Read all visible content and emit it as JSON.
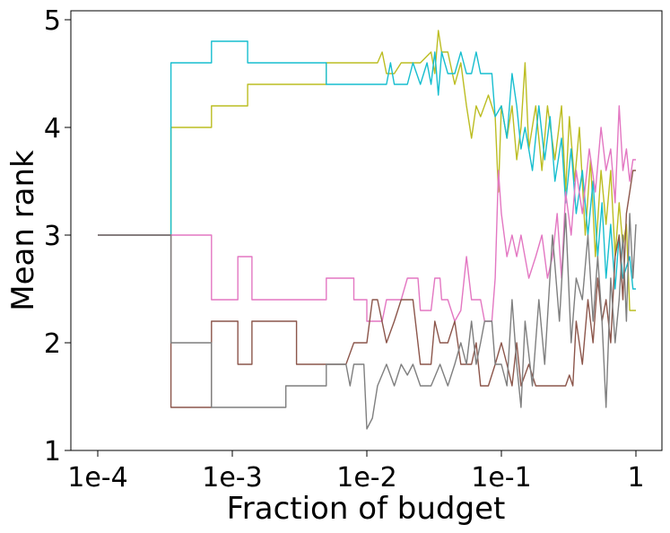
{
  "chart_data": {
    "type": "line",
    "title": "",
    "xlabel": "Fraction of budget",
    "ylabel": "Mean rank",
    "xscale": "log",
    "xlim": [
      0.0001,
      1
    ],
    "ylim": [
      1,
      5
    ],
    "xticks": [
      {
        "value": 0.0001,
        "label": "1e-4"
      },
      {
        "value": 0.001,
        "label": "1e-3"
      },
      {
        "value": 0.01,
        "label": "1e-2"
      },
      {
        "value": 0.1,
        "label": "1e-1"
      },
      {
        "value": 1,
        "label": "1"
      }
    ],
    "yticks": [
      {
        "value": 1,
        "label": "1"
      },
      {
        "value": 2,
        "label": "2"
      },
      {
        "value": 3,
        "label": "3"
      },
      {
        "value": 4,
        "label": "4"
      },
      {
        "value": 5,
        "label": "5"
      }
    ],
    "grid": false,
    "legend": "none",
    "series": [
      {
        "name": "olive",
        "color": "#bcbd22",
        "points": [
          [
            0.0001,
            3
          ],
          [
            0.00035,
            3
          ],
          [
            0.00035,
            4
          ],
          [
            0.0007,
            4
          ],
          [
            0.0007,
            4.2
          ],
          [
            0.0013,
            4.2
          ],
          [
            0.0013,
            4.4
          ],
          [
            0.005,
            4.4
          ],
          [
            0.005,
            4.6
          ],
          [
            0.012,
            4.6
          ],
          [
            0.013,
            4.7
          ],
          [
            0.014,
            4.5
          ],
          [
            0.016,
            4.5
          ],
          [
            0.018,
            4.6
          ],
          [
            0.025,
            4.6
          ],
          [
            0.03,
            4.7
          ],
          [
            0.032,
            4.5
          ],
          [
            0.034,
            4.9
          ],
          [
            0.036,
            4.7
          ],
          [
            0.04,
            4.7
          ],
          [
            0.045,
            4.4
          ],
          [
            0.05,
            4.6
          ],
          [
            0.055,
            4.2
          ],
          [
            0.06,
            3.9
          ],
          [
            0.065,
            4.2
          ],
          [
            0.07,
            4.1
          ],
          [
            0.08,
            4.3
          ],
          [
            0.09,
            4.1
          ],
          [
            0.095,
            3.4
          ],
          [
            0.1,
            4.2
          ],
          [
            0.11,
            3.9
          ],
          [
            0.12,
            4.2
          ],
          [
            0.13,
            3.7
          ],
          [
            0.14,
            4.0
          ],
          [
            0.15,
            4.6
          ],
          [
            0.16,
            3.8
          ],
          [
            0.18,
            4.2
          ],
          [
            0.2,
            3.6
          ],
          [
            0.22,
            4.2
          ],
          [
            0.25,
            3.7
          ],
          [
            0.28,
            4.2
          ],
          [
            0.3,
            3.4
          ],
          [
            0.32,
            4.1
          ],
          [
            0.35,
            3.5
          ],
          [
            0.38,
            4.0
          ],
          [
            0.42,
            3.0
          ],
          [
            0.46,
            3.7
          ],
          [
            0.5,
            2.8
          ],
          [
            0.55,
            3.6
          ],
          [
            0.6,
            3.1
          ],
          [
            0.65,
            3.6
          ],
          [
            0.7,
            2.8
          ],
          [
            0.75,
            3.3
          ],
          [
            0.8,
            2.9
          ],
          [
            0.85,
            3.1
          ],
          [
            0.9,
            2.3
          ],
          [
            1.0,
            2.3
          ]
        ]
      },
      {
        "name": "cyan",
        "color": "#17becf",
        "points": [
          [
            0.0001,
            3
          ],
          [
            0.00035,
            3
          ],
          [
            0.00035,
            4.6
          ],
          [
            0.0007,
            4.6
          ],
          [
            0.0007,
            4.8
          ],
          [
            0.0013,
            4.8
          ],
          [
            0.0013,
            4.6
          ],
          [
            0.005,
            4.6
          ],
          [
            0.005,
            4.4
          ],
          [
            0.014,
            4.4
          ],
          [
            0.015,
            4.6
          ],
          [
            0.016,
            4.4
          ],
          [
            0.02,
            4.4
          ],
          [
            0.022,
            4.6
          ],
          [
            0.025,
            4.4
          ],
          [
            0.028,
            4.6
          ],
          [
            0.03,
            4.4
          ],
          [
            0.032,
            4.7
          ],
          [
            0.034,
            4.3
          ],
          [
            0.036,
            4.7
          ],
          [
            0.04,
            4.5
          ],
          [
            0.045,
            4.5
          ],
          [
            0.05,
            4.7
          ],
          [
            0.055,
            4.5
          ],
          [
            0.06,
            4.5
          ],
          [
            0.065,
            4.7
          ],
          [
            0.07,
            4.5
          ],
          [
            0.085,
            4.5
          ],
          [
            0.09,
            4.1
          ],
          [
            0.1,
            4.2
          ],
          [
            0.11,
            3.9
          ],
          [
            0.12,
            4.5
          ],
          [
            0.13,
            4.2
          ],
          [
            0.14,
            3.8
          ],
          [
            0.15,
            4.0
          ],
          [
            0.17,
            3.6
          ],
          [
            0.19,
            4.2
          ],
          [
            0.21,
            3.7
          ],
          [
            0.23,
            4.1
          ],
          [
            0.25,
            3.5
          ],
          [
            0.28,
            3.9
          ],
          [
            0.3,
            3.3
          ],
          [
            0.33,
            3.8
          ],
          [
            0.36,
            3.2
          ],
          [
            0.4,
            3.6
          ],
          [
            0.44,
            3.0
          ],
          [
            0.48,
            3.5
          ],
          [
            0.52,
            2.8
          ],
          [
            0.56,
            3.3
          ],
          [
            0.6,
            2.6
          ],
          [
            0.65,
            3.1
          ],
          [
            0.7,
            2.5
          ],
          [
            0.75,
            3.0
          ],
          [
            0.8,
            2.6
          ],
          [
            0.9,
            2.8
          ],
          [
            0.95,
            2.5
          ],
          [
            1.0,
            2.5
          ]
        ]
      },
      {
        "name": "pink",
        "color": "#e377c2",
        "points": [
          [
            0.0001,
            3
          ],
          [
            0.00035,
            3
          ],
          [
            0.00035,
            3.0
          ],
          [
            0.0007,
            3.0
          ],
          [
            0.0007,
            2.4
          ],
          [
            0.0011,
            2.4
          ],
          [
            0.0011,
            2.8
          ],
          [
            0.0014,
            2.8
          ],
          [
            0.0014,
            2.4
          ],
          [
            0.005,
            2.4
          ],
          [
            0.005,
            2.6
          ],
          [
            0.008,
            2.6
          ],
          [
            0.008,
            2.4
          ],
          [
            0.01,
            2.4
          ],
          [
            0.01,
            2.2
          ],
          [
            0.013,
            2.2
          ],
          [
            0.014,
            2.4
          ],
          [
            0.018,
            2.4
          ],
          [
            0.02,
            2.6
          ],
          [
            0.024,
            2.6
          ],
          [
            0.025,
            2.3
          ],
          [
            0.03,
            2.3
          ],
          [
            0.032,
            2.6
          ],
          [
            0.035,
            2.6
          ],
          [
            0.036,
            2.4
          ],
          [
            0.04,
            2.4
          ],
          [
            0.045,
            2.2
          ],
          [
            0.05,
            2.3
          ],
          [
            0.055,
            2.8
          ],
          [
            0.06,
            2.4
          ],
          [
            0.07,
            2.4
          ],
          [
            0.075,
            2.2
          ],
          [
            0.085,
            2.2
          ],
          [
            0.09,
            2.6
          ],
          [
            0.095,
            3.6
          ],
          [
            0.1,
            3.2
          ],
          [
            0.11,
            2.8
          ],
          [
            0.12,
            3.0
          ],
          [
            0.13,
            2.8
          ],
          [
            0.14,
            3.0
          ],
          [
            0.16,
            2.6
          ],
          [
            0.18,
            2.8
          ],
          [
            0.2,
            3.0
          ],
          [
            0.22,
            2.6
          ],
          [
            0.24,
            2.8
          ],
          [
            0.26,
            3.2
          ],
          [
            0.28,
            2.6
          ],
          [
            0.3,
            3.4
          ],
          [
            0.33,
            3.0
          ],
          [
            0.36,
            3.6
          ],
          [
            0.4,
            3.2
          ],
          [
            0.45,
            3.8
          ],
          [
            0.5,
            3.4
          ],
          [
            0.55,
            4.0
          ],
          [
            0.6,
            3.6
          ],
          [
            0.65,
            3.8
          ],
          [
            0.7,
            3.3
          ],
          [
            0.75,
            4.2
          ],
          [
            0.8,
            3.6
          ],
          [
            0.85,
            3.8
          ],
          [
            0.9,
            3.5
          ],
          [
            0.95,
            3.7
          ],
          [
            1.0,
            3.7
          ]
        ]
      },
      {
        "name": "brown",
        "color": "#8c564b",
        "points": [
          [
            0.0001,
            3
          ],
          [
            0.00035,
            3
          ],
          [
            0.00035,
            1.4
          ],
          [
            0.0007,
            1.4
          ],
          [
            0.0007,
            2.2
          ],
          [
            0.0011,
            2.2
          ],
          [
            0.0011,
            1.8
          ],
          [
            0.0014,
            1.8
          ],
          [
            0.0014,
            2.2
          ],
          [
            0.003,
            2.2
          ],
          [
            0.003,
            1.8
          ],
          [
            0.007,
            1.8
          ],
          [
            0.008,
            2.0
          ],
          [
            0.01,
            2.0
          ],
          [
            0.011,
            2.4
          ],
          [
            0.012,
            2.4
          ],
          [
            0.014,
            2.0
          ],
          [
            0.016,
            2.2
          ],
          [
            0.018,
            2.4
          ],
          [
            0.022,
            2.4
          ],
          [
            0.025,
            1.8
          ],
          [
            0.03,
            1.8
          ],
          [
            0.032,
            2.2
          ],
          [
            0.035,
            2.0
          ],
          [
            0.04,
            2.0
          ],
          [
            0.045,
            2.2
          ],
          [
            0.05,
            1.8
          ],
          [
            0.06,
            1.8
          ],
          [
            0.065,
            2.0
          ],
          [
            0.07,
            1.6
          ],
          [
            0.08,
            1.6
          ],
          [
            0.09,
            1.8
          ],
          [
            0.1,
            2.0
          ],
          [
            0.11,
            1.8
          ],
          [
            0.12,
            1.6
          ],
          [
            0.13,
            2.0
          ],
          [
            0.14,
            1.6
          ],
          [
            0.16,
            1.8
          ],
          [
            0.18,
            1.6
          ],
          [
            0.2,
            1.6
          ],
          [
            0.22,
            1.6
          ],
          [
            0.25,
            1.6
          ],
          [
            0.28,
            1.6
          ],
          [
            0.3,
            1.6
          ],
          [
            0.32,
            1.7
          ],
          [
            0.34,
            1.6
          ],
          [
            0.36,
            2.2
          ],
          [
            0.4,
            1.8
          ],
          [
            0.44,
            2.4
          ],
          [
            0.48,
            2.0
          ],
          [
            0.52,
            2.6
          ],
          [
            0.56,
            2.2
          ],
          [
            0.6,
            2.4
          ],
          [
            0.65,
            2.0
          ],
          [
            0.7,
            2.8
          ],
          [
            0.75,
            3.0
          ],
          [
            0.8,
            2.4
          ],
          [
            0.85,
            3.2
          ],
          [
            0.9,
            3.4
          ],
          [
            0.95,
            3.6
          ],
          [
            1.0,
            3.6
          ]
        ]
      },
      {
        "name": "gray",
        "color": "#7f7f7f",
        "points": [
          [
            0.0001,
            3
          ],
          [
            0.00035,
            3
          ],
          [
            0.00035,
            2.0
          ],
          [
            0.0007,
            2.0
          ],
          [
            0.0007,
            1.4
          ],
          [
            0.0025,
            1.4
          ],
          [
            0.0025,
            1.6
          ],
          [
            0.005,
            1.6
          ],
          [
            0.005,
            1.8
          ],
          [
            0.007,
            1.8
          ],
          [
            0.0075,
            1.6
          ],
          [
            0.008,
            1.8
          ],
          [
            0.0095,
            1.8
          ],
          [
            0.01,
            1.2
          ],
          [
            0.011,
            1.3
          ],
          [
            0.012,
            1.6
          ],
          [
            0.014,
            1.8
          ],
          [
            0.016,
            1.6
          ],
          [
            0.018,
            1.8
          ],
          [
            0.02,
            1.7
          ],
          [
            0.022,
            1.8
          ],
          [
            0.025,
            1.6
          ],
          [
            0.03,
            1.6
          ],
          [
            0.035,
            1.8
          ],
          [
            0.04,
            1.6
          ],
          [
            0.045,
            1.8
          ],
          [
            0.05,
            2.0
          ],
          [
            0.055,
            1.8
          ],
          [
            0.06,
            2.2
          ],
          [
            0.065,
            1.8
          ],
          [
            0.07,
            2.0
          ],
          [
            0.075,
            2.2
          ],
          [
            0.085,
            2.2
          ],
          [
            0.09,
            1.8
          ],
          [
            0.1,
            1.8
          ],
          [
            0.11,
            1.6
          ],
          [
            0.12,
            2.4
          ],
          [
            0.13,
            1.8
          ],
          [
            0.14,
            1.4
          ],
          [
            0.15,
            2.2
          ],
          [
            0.17,
            1.6
          ],
          [
            0.19,
            2.4
          ],
          [
            0.21,
            1.8
          ],
          [
            0.24,
            3.0
          ],
          [
            0.27,
            2.2
          ],
          [
            0.3,
            3.2
          ],
          [
            0.33,
            2.0
          ],
          [
            0.36,
            2.6
          ],
          [
            0.4,
            2.4
          ],
          [
            0.44,
            3.0
          ],
          [
            0.48,
            2.2
          ],
          [
            0.52,
            2.8
          ],
          [
            0.56,
            2.2
          ],
          [
            0.6,
            1.4
          ],
          [
            0.65,
            2.6
          ],
          [
            0.7,
            2.0
          ],
          [
            0.75,
            2.4
          ],
          [
            0.8,
            3.0
          ],
          [
            0.85,
            2.2
          ],
          [
            0.9,
            3.2
          ],
          [
            0.95,
            2.6
          ],
          [
            1.0,
            3.1
          ]
        ]
      }
    ]
  }
}
